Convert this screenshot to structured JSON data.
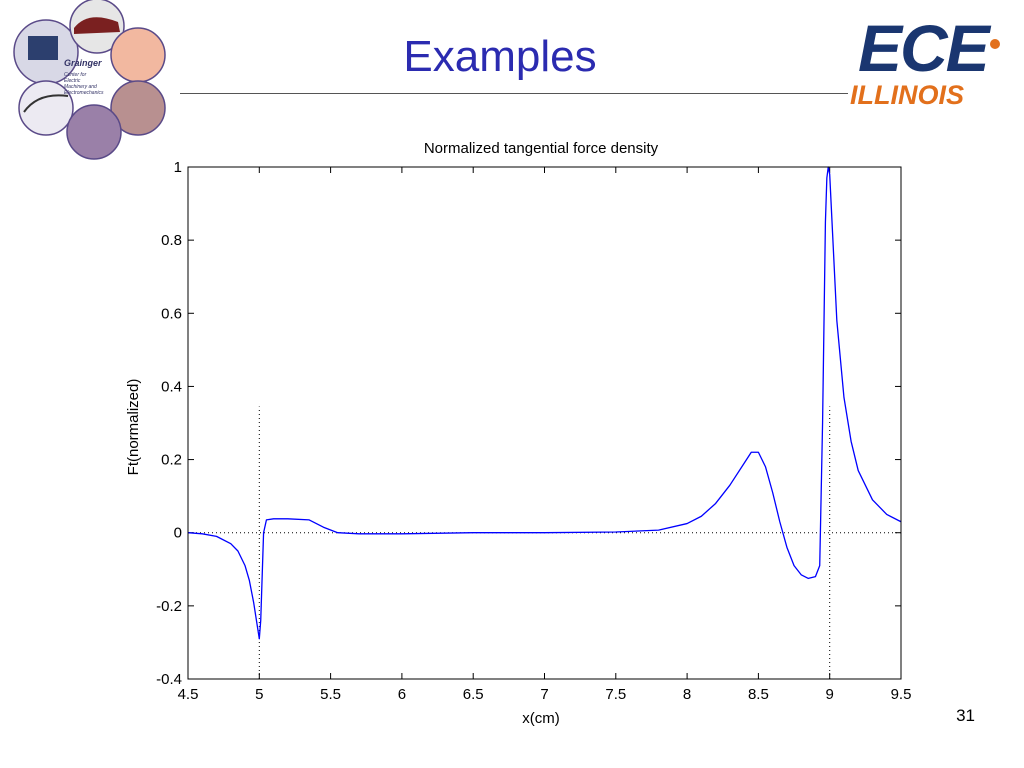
{
  "slide": {
    "title": "Examples",
    "page_number": "31",
    "logo_left_text": "Grainger",
    "logo_left_subtext": [
      "Center for",
      "Electric",
      "Machinery and",
      "Electromechanics"
    ],
    "logo_right_text": "ECE",
    "logo_right_subtext": "ILLINOIS"
  },
  "colors": {
    "title": "#2b2bb0",
    "line": "#0000ff",
    "ece_blue": "#1a3670",
    "illinois_orange": "#e2701c"
  },
  "chart_data": {
    "type": "line",
    "title": "Normalized tangential force density",
    "xlabel": "x(cm)",
    "ylabel": "Ft(normalized)",
    "xlim": [
      4.5,
      9.5
    ],
    "ylim": [
      -0.4,
      1
    ],
    "xticks": [
      "4.5",
      "5",
      "5.5",
      "6",
      "6.5",
      "7",
      "7.5",
      "8",
      "8.5",
      "9",
      "9.5"
    ],
    "yticks": [
      "-0.4",
      "-0.2",
      "0",
      "0.2",
      "0.4",
      "0.6",
      "0.8",
      "1"
    ],
    "grid": false,
    "legend": "none",
    "series": [
      {
        "x": [
          4.5,
          4.6,
          4.7,
          4.8,
          4.85,
          4.9,
          4.93,
          4.96,
          4.98,
          5.0,
          5.01,
          5.03,
          5.05,
          5.1,
          5.2,
          5.35,
          5.45,
          5.55,
          5.7,
          6.0,
          6.5,
          7.0,
          7.5,
          7.8,
          8.0,
          8.1,
          8.2,
          8.3,
          8.4,
          8.45,
          8.5,
          8.55,
          8.6,
          8.65,
          8.7,
          8.75,
          8.8,
          8.85,
          8.9,
          8.93,
          8.95,
          8.97,
          8.98,
          8.99,
          9.0,
          9.02,
          9.05,
          9.1,
          9.15,
          9.2,
          9.3,
          9.4,
          9.5
        ],
        "y": [
          0.0,
          -0.003,
          -0.01,
          -0.03,
          -0.05,
          -0.09,
          -0.13,
          -0.19,
          -0.24,
          -0.29,
          -0.24,
          0.0,
          0.035,
          0.038,
          0.038,
          0.035,
          0.015,
          0.0,
          -0.003,
          -0.003,
          0.0,
          0.0,
          0.002,
          0.007,
          0.025,
          0.045,
          0.08,
          0.13,
          0.19,
          0.22,
          0.22,
          0.18,
          0.11,
          0.03,
          -0.04,
          -0.09,
          -0.115,
          -0.125,
          -0.12,
          -0.09,
          0.3,
          0.85,
          0.97,
          1.0,
          0.98,
          0.82,
          0.58,
          0.37,
          0.25,
          0.17,
          0.09,
          0.05,
          0.03
        ]
      }
    ],
    "reference_lines": {
      "horizontal_y": 0,
      "vertical_x": [
        5,
        9
      ],
      "vertical_top_y": 0.345,
      "style": "dotted"
    }
  }
}
